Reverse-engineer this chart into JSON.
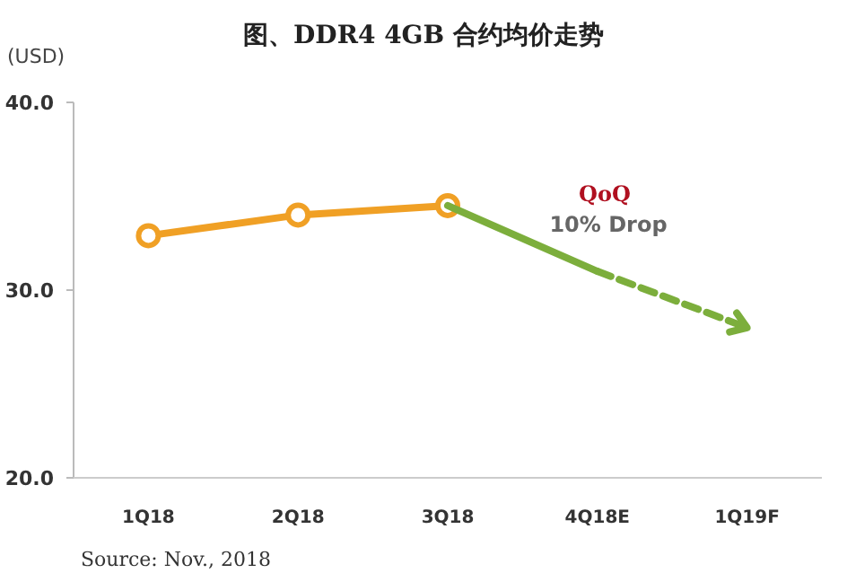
{
  "chart_data": {
    "type": "line",
    "title": "图、DDR4 4GB 合约均价走势",
    "ylabel": "(USD)",
    "categories": [
      "1Q18",
      "2Q18",
      "3Q18",
      "4Q18E",
      "1Q19F"
    ],
    "series": [
      {
        "color": "#f0a025",
        "values": [
          32.9,
          34.0,
          34.5,
          null,
          null
        ],
        "marker": "circle",
        "line_style": "solid"
      },
      {
        "color": "#7cae3c",
        "values": [
          null,
          null,
          34.5,
          31.0,
          null
        ],
        "marker": "none",
        "line_style": "solid"
      },
      {
        "color": "#7cae3c",
        "values": [
          null,
          null,
          null,
          31.0,
          28.0
        ],
        "marker": "none",
        "line_style": "dashed"
      }
    ],
    "ylim": [
      20,
      40
    ],
    "yticks": [
      {
        "value": 20,
        "label": "20.0"
      },
      {
        "value": 30,
        "label": "30.0"
      },
      {
        "value": 40,
        "label": "40.0"
      }
    ],
    "grid": false,
    "annotations": [
      "QoQ",
      "10% Drop",
      "Source: Nov., 2018"
    ]
  }
}
